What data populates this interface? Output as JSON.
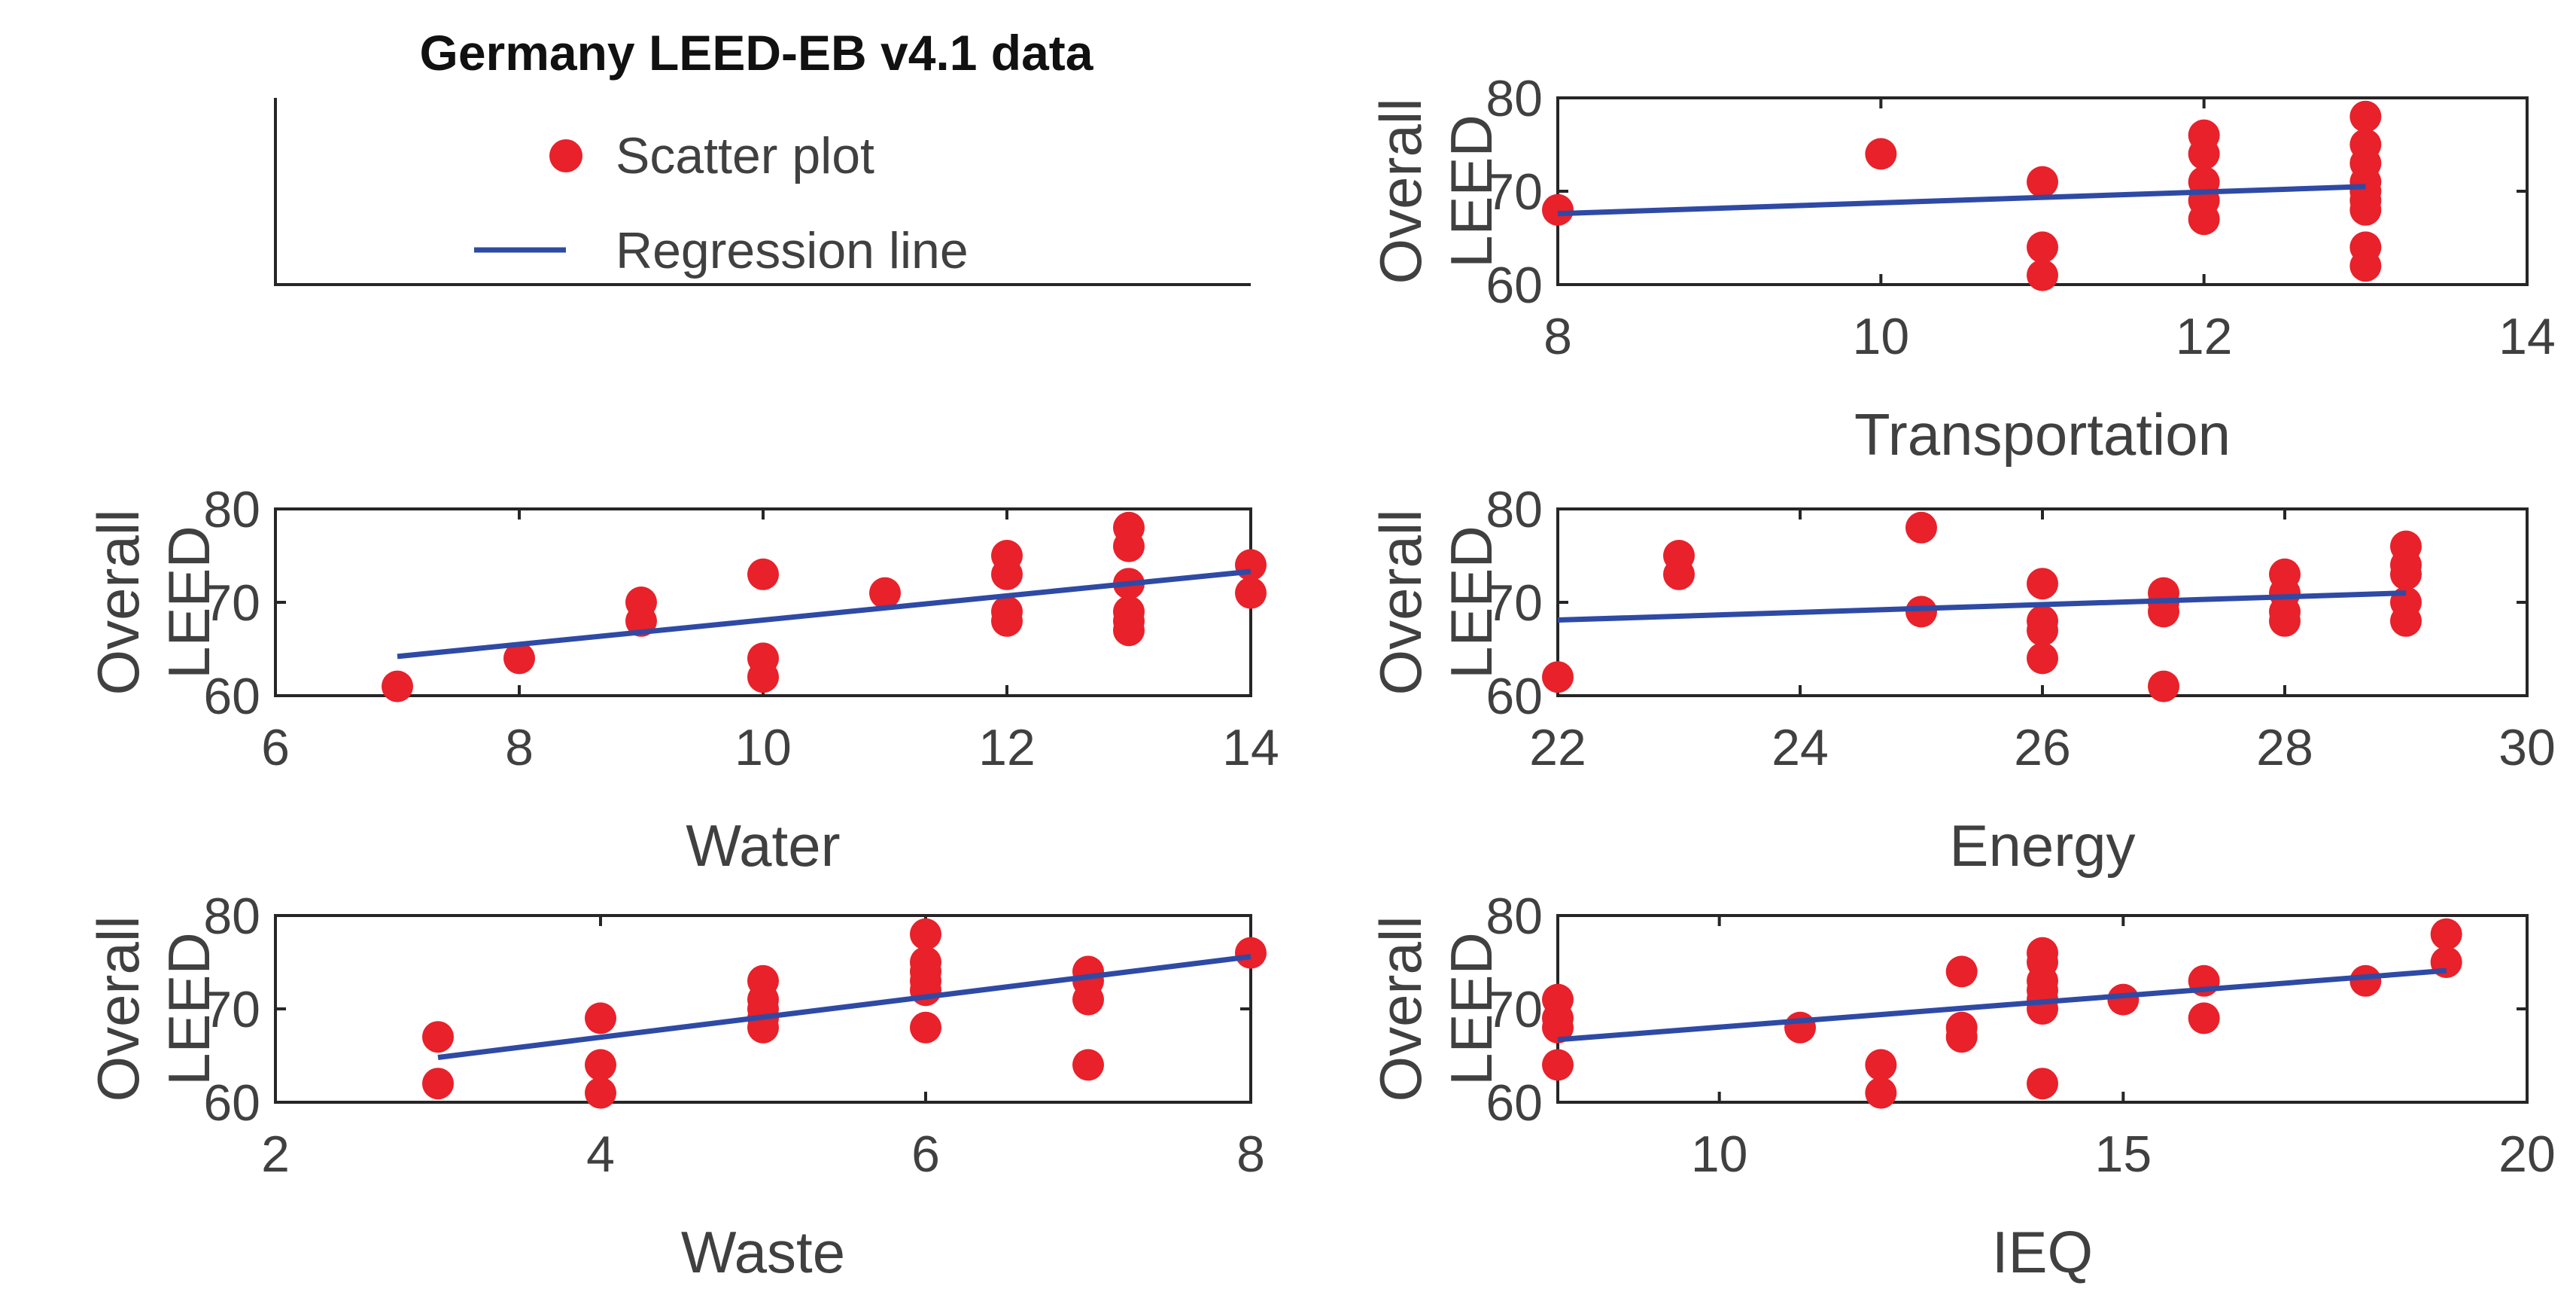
{
  "title": "Germany LEED-EB v4.1 data",
  "legend": {
    "scatter_label": "Scatter plot",
    "regression_label": "Regression line"
  },
  "colors": {
    "scatter": "#e8212a",
    "regression": "#2e4aa5",
    "axis": "#262626",
    "text": "#404040"
  },
  "chart_data": [
    {
      "type": "scatter",
      "xlabel": "Transportation",
      "ylabel": [
        "Overall",
        "LEED"
      ],
      "xlim": [
        8,
        14
      ],
      "ylim": [
        60,
        80
      ],
      "xticks": [
        8,
        10,
        12,
        14
      ],
      "yticks": [
        60,
        70,
        80
      ],
      "points": [
        [
          8,
          68
        ],
        [
          10,
          74
        ],
        [
          11,
          71
        ],
        [
          11,
          64
        ],
        [
          11,
          61
        ],
        [
          12,
          76
        ],
        [
          12,
          74
        ],
        [
          12,
          71
        ],
        [
          12,
          69
        ],
        [
          12,
          67
        ],
        [
          13,
          78
        ],
        [
          13,
          75
        ],
        [
          13,
          73
        ],
        [
          13,
          71
        ],
        [
          13,
          70
        ],
        [
          13,
          69
        ],
        [
          13,
          68
        ],
        [
          13,
          64
        ],
        [
          13,
          62
        ]
      ],
      "regression": [
        [
          8,
          67.6
        ],
        [
          13,
          70.5
        ]
      ]
    },
    {
      "type": "scatter",
      "xlabel": "Water",
      "ylabel": [
        "Overall",
        "LEED"
      ],
      "xlim": [
        6,
        14
      ],
      "ylim": [
        60,
        80
      ],
      "xticks": [
        6,
        8,
        10,
        12,
        14
      ],
      "yticks": [
        60,
        70,
        80
      ],
      "points": [
        [
          7,
          61
        ],
        [
          8,
          64
        ],
        [
          9,
          70
        ],
        [
          9,
          68
        ],
        [
          10,
          73
        ],
        [
          10,
          64
        ],
        [
          10,
          62
        ],
        [
          11,
          71
        ],
        [
          12,
          75
        ],
        [
          12,
          73
        ],
        [
          12,
          69
        ],
        [
          12,
          68
        ],
        [
          13,
          78
        ],
        [
          13,
          76
        ],
        [
          13,
          72
        ],
        [
          13,
          69
        ],
        [
          13,
          68
        ],
        [
          13,
          67
        ],
        [
          14,
          74
        ],
        [
          14,
          71
        ]
      ],
      "regression": [
        [
          7,
          64.2
        ],
        [
          14,
          73.3
        ]
      ]
    },
    {
      "type": "scatter",
      "xlabel": "Energy",
      "ylabel": [
        "Overall",
        "LEED"
      ],
      "xlim": [
        22,
        30
      ],
      "ylim": [
        60,
        80
      ],
      "xticks": [
        22,
        24,
        26,
        28,
        30
      ],
      "yticks": [
        60,
        70,
        80
      ],
      "points": [
        [
          22,
          62
        ],
        [
          23,
          75
        ],
        [
          23,
          73
        ],
        [
          25,
          78
        ],
        [
          25,
          69
        ],
        [
          26,
          72
        ],
        [
          26,
          68
        ],
        [
          26,
          67
        ],
        [
          26,
          64
        ],
        [
          27,
          71
        ],
        [
          27,
          70
        ],
        [
          27,
          69
        ],
        [
          27,
          61
        ],
        [
          28,
          73
        ],
        [
          28,
          71
        ],
        [
          28,
          69
        ],
        [
          28,
          68
        ],
        [
          29,
          76
        ],
        [
          29,
          74
        ],
        [
          29,
          73
        ],
        [
          29,
          70
        ],
        [
          29,
          68
        ]
      ],
      "regression": [
        [
          22,
          68.1
        ],
        [
          29,
          71.0
        ]
      ]
    },
    {
      "type": "scatter",
      "xlabel": "Waste",
      "ylabel": [
        "Overall",
        "LEED"
      ],
      "xlim": [
        2,
        8
      ],
      "ylim": [
        60,
        80
      ],
      "xticks": [
        2,
        4,
        6,
        8
      ],
      "yticks": [
        60,
        70,
        80
      ],
      "points": [
        [
          3,
          67
        ],
        [
          3,
          62
        ],
        [
          4,
          69
        ],
        [
          4,
          64
        ],
        [
          4,
          61
        ],
        [
          5,
          73
        ],
        [
          5,
          71
        ],
        [
          5,
          70
        ],
        [
          5,
          69
        ],
        [
          5,
          68
        ],
        [
          6,
          78
        ],
        [
          6,
          75
        ],
        [
          6,
          74
        ],
        [
          6,
          73
        ],
        [
          6,
          72
        ],
        [
          6,
          68
        ],
        [
          7,
          74
        ],
        [
          7,
          73
        ],
        [
          7,
          71
        ],
        [
          7,
          64
        ],
        [
          8,
          76
        ]
      ],
      "regression": [
        [
          3,
          64.8
        ],
        [
          8,
          75.6
        ]
      ]
    },
    {
      "type": "scatter",
      "xlabel": "IEQ",
      "ylabel": [
        "Overall",
        "LEED"
      ],
      "xlim": [
        8,
        20
      ],
      "ylim": [
        60,
        80
      ],
      "xticks": [
        10,
        15,
        20
      ],
      "yticks": [
        60,
        70,
        80
      ],
      "points": [
        [
          8,
          71
        ],
        [
          8,
          69
        ],
        [
          8,
          68
        ],
        [
          8,
          64
        ],
        [
          11,
          68
        ],
        [
          12,
          64
        ],
        [
          12,
          61
        ],
        [
          13,
          74
        ],
        [
          13,
          68
        ],
        [
          13,
          67
        ],
        [
          14,
          76
        ],
        [
          14,
          75
        ],
        [
          14,
          73
        ],
        [
          14,
          72
        ],
        [
          14,
          71
        ],
        [
          14,
          70
        ],
        [
          14,
          62
        ],
        [
          15,
          71
        ],
        [
          16,
          73
        ],
        [
          16,
          69
        ],
        [
          18,
          73
        ],
        [
          19,
          78
        ],
        [
          19,
          75
        ]
      ],
      "regression": [
        [
          8,
          66.7
        ],
        [
          19,
          74.1
        ]
      ]
    }
  ]
}
